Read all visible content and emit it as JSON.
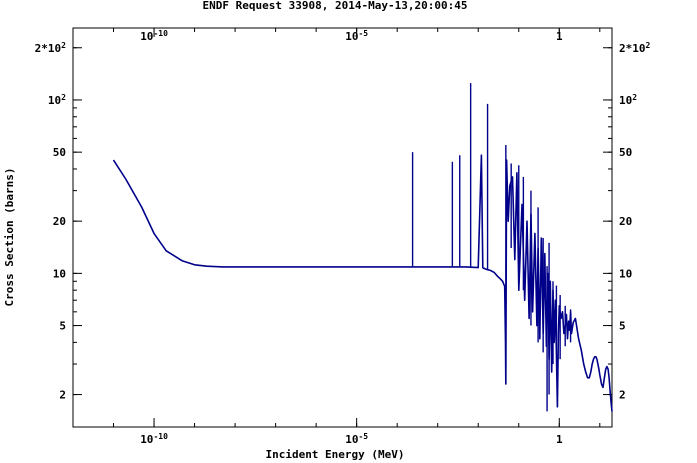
{
  "chart_data": {
    "type": "line",
    "title": "ENDF Request 33908, 2014-May-13,20:00:45",
    "xlabel": "Incident Energy (MeV)",
    "ylabel": "Cross Section (barns)",
    "x_scale": "log",
    "y_scale": "log",
    "xlim": [
      1e-12,
      20
    ],
    "ylim": [
      1.3,
      260
    ],
    "grid": false,
    "legend": "none",
    "line_color": "#00008b",
    "x_ticks": [
      {
        "value": 1e-10,
        "label_base": "10",
        "label_exp": "-10"
      },
      {
        "value": 1e-05,
        "label_base": "10",
        "label_exp": "-5"
      },
      {
        "value": 1,
        "label_base": "1",
        "label_exp": ""
      }
    ],
    "y_ticks": [
      {
        "value": 200,
        "label_base": "2*10",
        "label_exp": "2"
      },
      {
        "value": 100,
        "label_base": "10",
        "label_exp": "2"
      },
      {
        "value": 50,
        "label_base": "50",
        "label_exp": ""
      },
      {
        "value": 20,
        "label_base": "20",
        "label_exp": ""
      },
      {
        "value": 10,
        "label_base": "10",
        "label_exp": ""
      },
      {
        "value": 5,
        "label_base": "5",
        "label_exp": ""
      },
      {
        "value": 2,
        "label_base": "2",
        "label_exp": ""
      }
    ],
    "series": [
      {
        "x": [
          1e-11,
          2e-11,
          5e-11,
          1e-10,
          2e-10,
          5e-10,
          1e-09,
          2e-09,
          5e-09,
          1e-08,
          1e-07,
          1e-06,
          1e-05,
          0.0001,
          0.001,
          0.005,
          0.01,
          0.012,
          0.013,
          0.0135,
          0.014,
          0.015,
          0.017,
          0.02,
          0.025,
          0.03,
          0.035,
          0.04,
          0.045,
          0.047,
          0.048,
          0.05,
          0.055,
          0.06,
          0.07,
          0.08,
          0.09,
          0.1,
          0.12,
          0.14,
          0.16,
          0.18,
          0.2,
          0.22,
          0.25,
          0.28,
          0.3,
          0.33,
          0.36,
          0.4,
          0.44,
          0.48,
          0.52,
          0.56,
          0.6,
          0.65,
          0.7,
          0.75,
          0.8,
          0.85,
          0.9,
          0.95,
          1.0,
          1.1,
          1.2,
          1.3,
          1.4,
          1.5,
          1.6,
          1.7,
          1.8,
          1.9,
          2.0,
          2.2,
          2.5,
          3.0,
          3.5,
          4.0,
          4.5,
          5.0,
          5.5,
          6.0,
          6.5,
          7.0,
          7.5,
          8.0,
          8.5,
          9.0,
          9.5,
          10.0,
          11.0,
          12.0,
          13.0,
          14.0,
          15.0,
          16.0,
          17.0,
          18.0,
          19.0,
          20.0
        ],
        "y": [
          45,
          35,
          24,
          17,
          13.5,
          11.8,
          11.2,
          11.0,
          10.9,
          10.9,
          10.9,
          10.9,
          10.9,
          10.9,
          10.9,
          10.9,
          10.8,
          48,
          10.8,
          10.7,
          10.7,
          10.6,
          10.5,
          10.4,
          10.1,
          9.6,
          9.3,
          9.0,
          8.4,
          4.0,
          2.3,
          45,
          20,
          32,
          36,
          12,
          38,
          8,
          25,
          7,
          20,
          5.5,
          22,
          6,
          17,
          5,
          14,
          4.2,
          16,
          4.5,
          13,
          3.8,
          10,
          3.2,
          9,
          2.7,
          8,
          4,
          7,
          3.5,
          1.7,
          4.5,
          6.5,
          5.5,
          6,
          4.5,
          5,
          5.8,
          4.2,
          5.3,
          4.7,
          6.0,
          4.5,
          5.2,
          5.5,
          4.2,
          3.6,
          3.0,
          2.7,
          2.5,
          2.5,
          2.7,
          3.0,
          3.2,
          3.3,
          3.3,
          3.2,
          3.0,
          2.8,
          2.6,
          2.3,
          2.2,
          2.5,
          2.8,
          2.9,
          2.8,
          2.5,
          2.1,
          1.8,
          1.6
        ]
      }
    ],
    "spikes": [
      {
        "x": 0.00024,
        "y_top": 50,
        "y_base": 10.9
      },
      {
        "x": 0.0023,
        "y_top": 44,
        "y_base": 10.9
      },
      {
        "x": 0.0035,
        "y_top": 48,
        "y_base": 10.9
      },
      {
        "x": 0.0065,
        "y_top": 125,
        "y_base": 10.8
      },
      {
        "x": 0.017,
        "y_top": 95,
        "y_base": 10.5
      },
      {
        "x": 0.048,
        "y_top": 55,
        "y_base": 2.3
      },
      {
        "x": 0.065,
        "y_top": 43,
        "y_base": 14
      },
      {
        "x": 0.1,
        "y_top": 42,
        "y_base": 12
      },
      {
        "x": 0.13,
        "y_top": 36,
        "y_base": 8
      },
      {
        "x": 0.2,
        "y_top": 30,
        "y_base": 5
      },
      {
        "x": 0.3,
        "y_top": 24,
        "y_base": 4
      },
      {
        "x": 0.4,
        "y_top": 16,
        "y_base": 3.5
      },
      {
        "x": 0.5,
        "y_top": 11,
        "y_base": 1.6
      },
      {
        "x": 0.56,
        "y_top": 15,
        "y_base": 2.0
      },
      {
        "x": 0.7,
        "y_top": 9,
        "y_base": 3.0
      },
      {
        "x": 0.85,
        "y_top": 8.5,
        "y_base": 3.8
      },
      {
        "x": 1.05,
        "y_top": 7.5,
        "y_base": 3.2
      },
      {
        "x": 1.4,
        "y_top": 6.5,
        "y_base": 3.8
      },
      {
        "x": 1.9,
        "y_top": 6.2,
        "y_base": 4.0
      }
    ]
  }
}
